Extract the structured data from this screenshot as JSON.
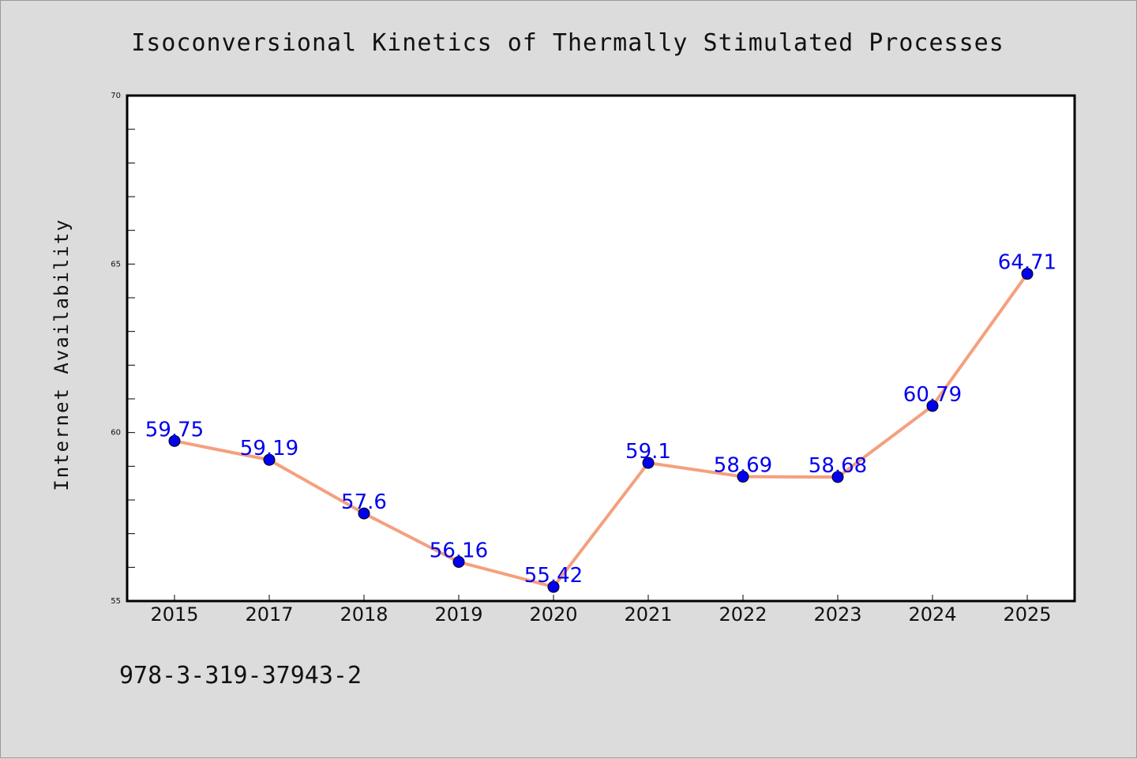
{
  "chart_data": {
    "type": "line",
    "title": "Isoconversional Kinetics of Thermally Stimulated Processes",
    "xlabel": "",
    "ylabel": "Internet Availability",
    "categories": [
      "2015",
      "2017",
      "2018",
      "2019",
      "2020",
      "2021",
      "2022",
      "2023",
      "2024",
      "2025"
    ],
    "series": [
      {
        "values": [
          59.75,
          59.19,
          57.6,
          56.16,
          55.42,
          59.1,
          58.69,
          58.68,
          60.79,
          64.71
        ],
        "data_labels": [
          "59.75",
          "59.19",
          "57.6",
          "56.16",
          "55.42",
          "59.1",
          "58.69",
          "58.68",
          "60.79",
          "64.71"
        ],
        "line_color": "#f4a07e",
        "marker_color": "#0000ee"
      }
    ],
    "ylim": [
      55,
      70
    ],
    "yticks": [
      "55",
      "60",
      "65",
      "70"
    ],
    "grid": false,
    "legend": "none"
  },
  "footer_text": "978-3-319-37943-2",
  "colors": {
    "background": "#dcdcdc",
    "plot_background": "#ffffff",
    "line": "#f4a07e",
    "marker": "#0000ee",
    "label": "#0000ee"
  }
}
